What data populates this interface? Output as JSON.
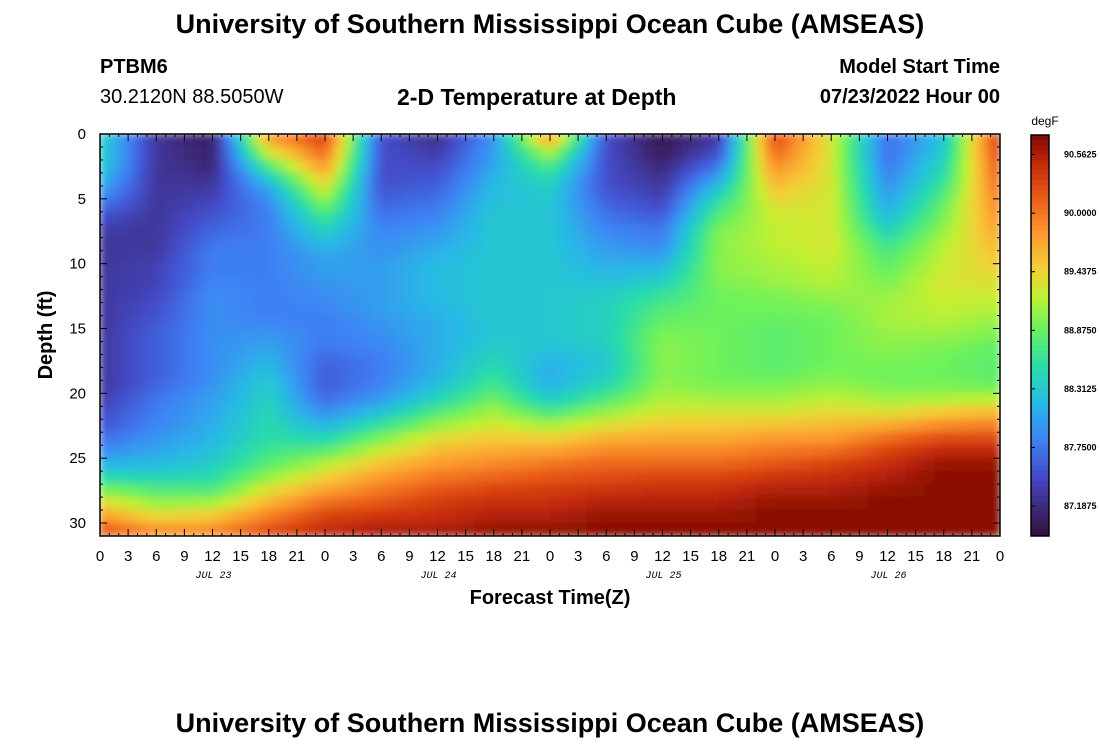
{
  "header": {
    "title": "University of Southern Mississippi Ocean Cube (AMSEAS)",
    "station_id": "PTBM6",
    "coordinates": "30.2120N  88.5050W",
    "subtitle": "2-D Temperature at Depth",
    "model_start_label": "Model Start Time",
    "model_start_value": "07/23/2022 Hour 00"
  },
  "footer": {
    "title": "University of Southern Mississippi Ocean Cube (AMSEAS)"
  },
  "chart_data": {
    "type": "heatmap",
    "title": "2-D Temperature at Depth",
    "xlabel": "Forecast Time(Z)",
    "ylabel": "Depth (ft)",
    "x_unit": "hours since model start",
    "xlim": [
      0,
      96
    ],
    "ylim": [
      0,
      31
    ],
    "y_inverted": true,
    "x_major_ticks": [
      0,
      3,
      6,
      9,
      12,
      15,
      18,
      21,
      24,
      27,
      30,
      33,
      36,
      39,
      42,
      45,
      48,
      51,
      54,
      57,
      60,
      63,
      66,
      69,
      72,
      75,
      78,
      81,
      84,
      87,
      90,
      93,
      96
    ],
    "x_tick_labels": [
      "0",
      "3",
      "6",
      "9",
      "12",
      "15",
      "18",
      "21",
      "0",
      "3",
      "6",
      "9",
      "12",
      "15",
      "18",
      "21",
      "0",
      "3",
      "6",
      "9",
      "12",
      "15",
      "18",
      "21",
      "0",
      "3",
      "6",
      "9",
      "12",
      "15",
      "18",
      "21",
      "0"
    ],
    "date_labels": [
      {
        "hour": 12,
        "label": "JUL 23"
      },
      {
        "hour": 36,
        "label": "JUL 24"
      },
      {
        "hour": 60,
        "label": "JUL 25"
      },
      {
        "hour": 84,
        "label": "JUL 26"
      }
    ],
    "y_major_ticks": [
      0,
      5,
      10,
      15,
      20,
      25,
      30
    ],
    "colorbar": {
      "unit": "degF",
      "min": 86.9,
      "max": 90.75,
      "tick_values": [
        90.5625,
        90.0,
        89.4375,
        88.875,
        88.3125,
        87.75,
        87.1875
      ],
      "tick_labels": [
        "90.5625",
        "90.0000",
        "89.4375",
        "88.8750",
        "88.3125",
        "87.7500",
        "87.1875"
      ]
    },
    "depth_levels_ft": [
      0,
      1,
      2,
      3,
      4,
      5,
      6,
      7,
      8,
      9,
      10,
      11,
      12,
      13,
      14,
      15,
      16,
      17,
      18,
      19,
      20,
      21,
      22,
      23,
      24,
      25,
      26,
      27,
      28,
      29,
      30,
      31
    ],
    "time_samples_h": [
      0,
      6,
      12,
      18,
      24,
      30,
      36,
      42,
      48,
      54,
      60,
      66,
      72,
      78,
      84,
      90,
      96
    ],
    "temperature_degF": [
      [
        88.4,
        87.3,
        87.0,
        89.9,
        90.4,
        87.5,
        87.2,
        87.9,
        90.0,
        87.5,
        87.0,
        87.3,
        90.3,
        89.3,
        87.7,
        88.2,
        90.5
      ],
      [
        88.4,
        87.3,
        87.1,
        89.5,
        90.2,
        87.5,
        87.3,
        88.0,
        89.4,
        87.5,
        87.0,
        87.4,
        90.2,
        89.3,
        87.7,
        88.3,
        90.4
      ],
      [
        88.4,
        87.3,
        87.1,
        89.0,
        90.0,
        87.5,
        87.4,
        88.0,
        88.9,
        87.5,
        87.1,
        87.6,
        90.0,
        89.3,
        87.7,
        88.4,
        90.3
      ],
      [
        88.3,
        87.3,
        87.2,
        88.5,
        89.7,
        87.5,
        87.5,
        88.1,
        88.6,
        87.5,
        87.2,
        87.9,
        89.8,
        89.3,
        87.8,
        88.5,
        90.2
      ],
      [
        88.1,
        87.3,
        87.3,
        88.1,
        89.4,
        87.5,
        87.6,
        88.2,
        88.4,
        87.5,
        87.3,
        88.2,
        89.6,
        89.3,
        87.9,
        88.6,
        90.1
      ],
      [
        87.9,
        87.3,
        87.4,
        87.9,
        89.1,
        87.6,
        87.7,
        88.2,
        88.3,
        87.6,
        87.4,
        88.5,
        89.4,
        89.3,
        88.0,
        88.8,
        90.0
      ],
      [
        87.6,
        87.3,
        87.5,
        87.8,
        88.8,
        87.7,
        87.8,
        88.3,
        88.3,
        87.7,
        87.5,
        88.7,
        89.3,
        89.3,
        88.1,
        88.9,
        89.9
      ],
      [
        87.4,
        87.3,
        87.6,
        87.8,
        88.5,
        87.8,
        87.9,
        88.3,
        88.3,
        87.8,
        87.7,
        88.9,
        89.2,
        89.3,
        88.3,
        89.0,
        89.8
      ],
      [
        87.3,
        87.3,
        87.7,
        87.8,
        88.3,
        87.9,
        88.0,
        88.3,
        88.3,
        87.9,
        87.8,
        89.0,
        89.2,
        89.3,
        88.5,
        89.1,
        89.7
      ],
      [
        87.3,
        87.3,
        87.8,
        87.8,
        88.1,
        87.9,
        88.1,
        88.3,
        88.3,
        88.0,
        87.9,
        89.0,
        89.2,
        89.3,
        88.7,
        89.2,
        89.6
      ],
      [
        87.3,
        87.4,
        87.8,
        87.8,
        88.0,
        88.0,
        88.2,
        88.3,
        88.3,
        88.1,
        88.1,
        89.0,
        89.1,
        89.2,
        88.8,
        89.2,
        89.5
      ],
      [
        87.3,
        87.4,
        87.8,
        87.8,
        88.0,
        88.0,
        88.2,
        88.3,
        88.3,
        88.2,
        88.3,
        89.0,
        89.1,
        89.2,
        88.9,
        89.3,
        89.4
      ],
      [
        87.3,
        87.4,
        87.9,
        87.8,
        87.9,
        88.0,
        88.2,
        88.3,
        88.3,
        88.3,
        88.5,
        88.9,
        89.0,
        89.1,
        89.0,
        89.3,
        89.3
      ],
      [
        87.3,
        87.5,
        87.9,
        87.8,
        87.9,
        88.0,
        88.2,
        88.3,
        88.3,
        88.4,
        88.7,
        88.9,
        88.9,
        89.0,
        89.1,
        89.2,
        89.2
      ],
      [
        87.3,
        87.5,
        87.9,
        87.8,
        87.8,
        88.0,
        88.1,
        88.3,
        88.3,
        88.4,
        88.8,
        88.9,
        88.9,
        88.9,
        89.1,
        89.2,
        89.1
      ],
      [
        87.3,
        87.6,
        87.9,
        87.9,
        87.8,
        87.9,
        88.1,
        88.3,
        88.3,
        88.4,
        88.9,
        88.9,
        88.8,
        88.9,
        89.1,
        89.1,
        89.0
      ],
      [
        87.3,
        87.6,
        87.9,
        88.0,
        87.8,
        87.9,
        88.1,
        88.3,
        88.3,
        88.4,
        89.0,
        88.9,
        88.8,
        88.9,
        89.0,
        89.0,
        88.9
      ],
      [
        87.3,
        87.6,
        87.9,
        88.1,
        87.7,
        87.8,
        88.1,
        88.4,
        88.2,
        88.3,
        89.0,
        88.9,
        88.8,
        88.9,
        89.0,
        88.9,
        88.8
      ],
      [
        87.3,
        87.6,
        87.9,
        88.2,
        87.6,
        87.8,
        88.1,
        88.5,
        88.1,
        88.3,
        89.0,
        88.9,
        88.8,
        88.9,
        88.9,
        88.9,
        88.8
      ],
      [
        87.3,
        87.6,
        87.9,
        88.3,
        87.6,
        87.8,
        88.2,
        88.6,
        88.1,
        88.4,
        89.0,
        88.9,
        88.9,
        89.0,
        88.9,
        88.9,
        88.8
      ],
      [
        87.3,
        87.7,
        88.0,
        88.4,
        87.6,
        87.9,
        88.3,
        88.8,
        88.2,
        88.6,
        89.1,
        89.0,
        89.0,
        89.1,
        89.0,
        89.0,
        89.0
      ],
      [
        87.4,
        87.8,
        88.0,
        88.4,
        87.8,
        88.1,
        88.6,
        89.0,
        88.5,
        88.9,
        89.2,
        89.2,
        89.2,
        89.3,
        89.2,
        89.3,
        89.4
      ],
      [
        87.5,
        87.8,
        88.1,
        88.5,
        88.0,
        88.4,
        88.9,
        89.2,
        88.9,
        89.2,
        89.4,
        89.4,
        89.4,
        89.5,
        89.5,
        89.7,
        89.8
      ],
      [
        87.6,
        87.9,
        88.1,
        88.5,
        88.3,
        88.8,
        89.2,
        89.4,
        89.3,
        89.5,
        89.6,
        89.6,
        89.7,
        89.7,
        89.9,
        90.1,
        90.1
      ],
      [
        87.8,
        88.0,
        88.2,
        88.6,
        88.6,
        89.1,
        89.5,
        89.6,
        89.6,
        89.8,
        89.8,
        89.8,
        89.9,
        89.9,
        90.2,
        90.4,
        90.4
      ],
      [
        88.0,
        88.1,
        88.3,
        88.7,
        89.0,
        89.4,
        89.7,
        89.8,
        89.9,
        90.0,
        90.0,
        90.0,
        90.1,
        90.2,
        90.4,
        90.6,
        90.6
      ],
      [
        88.3,
        88.3,
        88.4,
        88.9,
        89.3,
        89.7,
        89.9,
        90.0,
        90.1,
        90.2,
        90.2,
        90.2,
        90.3,
        90.4,
        90.5,
        90.7,
        90.7
      ],
      [
        88.7,
        88.6,
        88.6,
        89.2,
        89.6,
        89.9,
        90.1,
        90.2,
        90.3,
        90.3,
        90.4,
        90.4,
        90.5,
        90.5,
        90.6,
        90.7,
        90.7
      ],
      [
        89.2,
        88.9,
        88.9,
        89.5,
        89.9,
        90.1,
        90.3,
        90.4,
        90.4,
        90.5,
        90.5,
        90.5,
        90.6,
        90.6,
        90.7,
        90.7,
        90.7
      ],
      [
        89.6,
        89.2,
        89.3,
        89.8,
        90.2,
        90.3,
        90.4,
        90.5,
        90.5,
        90.6,
        90.6,
        90.6,
        90.7,
        90.7,
        90.7,
        90.7,
        90.7
      ],
      [
        90.0,
        89.6,
        89.7,
        90.1,
        90.4,
        90.5,
        90.5,
        90.6,
        90.6,
        90.7,
        90.7,
        90.7,
        90.7,
        90.7,
        90.7,
        90.7,
        90.7
      ],
      [
        90.3,
        90.0,
        90.0,
        90.3,
        90.5,
        90.6,
        90.6,
        90.7,
        90.7,
        90.7,
        90.7,
        90.7,
        90.7,
        90.7,
        90.7,
        90.7,
        90.7
      ]
    ]
  }
}
